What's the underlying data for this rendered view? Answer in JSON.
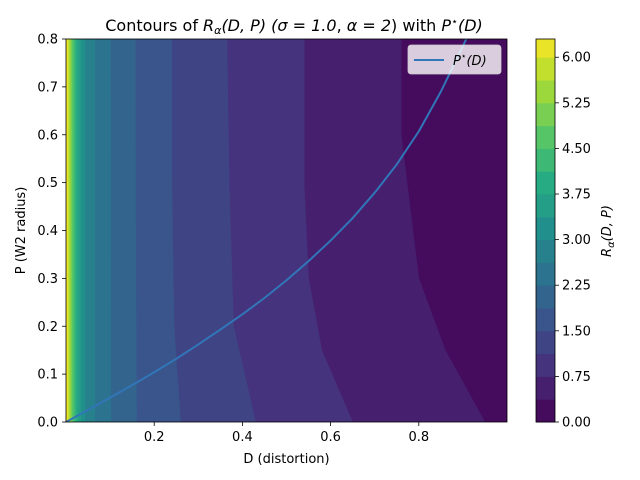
{
  "chart_data": {
    "type": "contour",
    "title": "Contours of R_α(D, P) (σ = 1.0, α = 2) with P*(D)",
    "title_parts": {
      "prefix": "Contours of ",
      "func": "R",
      "func_sub": "α",
      "args": "(D, P) (",
      "sigma": "σ = 1.0",
      "sep": ", ",
      "alpha": "α = 2",
      "suffix": ") with ",
      "pstar": "P",
      "pstar_sup": "⋆",
      "pstar_args": "(D)"
    },
    "xlabel": "D (distortion)",
    "ylabel": "P (W2 radius)",
    "xlim": [
      0.0,
      1.0
    ],
    "ylim": [
      0.0,
      0.8
    ],
    "xticks": [
      0.2,
      0.4,
      0.6,
      0.8
    ],
    "xtick_labels": [
      "0.2",
      "0.4",
      "0.6",
      "0.8"
    ],
    "yticks": [
      0.0,
      0.1,
      0.2,
      0.3,
      0.4,
      0.5,
      0.6,
      0.7,
      0.8
    ],
    "ytick_labels": [
      "0.0",
      "0.1",
      "0.2",
      "0.3",
      "0.4",
      "0.5",
      "0.6",
      "0.7",
      "0.8"
    ],
    "colorbar": {
      "label": "R_α(D, P)",
      "label_main": "R",
      "label_sub": "α",
      "label_args": "(D, P)",
      "levels": [
        0.0,
        0.375,
        0.75,
        1.125,
        1.5,
        1.875,
        2.25,
        2.625,
        3.0,
        3.375,
        3.75,
        4.125,
        4.5,
        4.875,
        5.25,
        5.625,
        6.0,
        6.375
      ],
      "ticks": [
        0.0,
        0.75,
        1.5,
        2.25,
        3.0,
        3.75,
        4.5,
        5.25,
        6.0
      ],
      "tick_labels": [
        "0.00",
        "0.75",
        "1.50",
        "2.25",
        "3.00",
        "3.75",
        "4.50",
        "5.25",
        "6.00"
      ],
      "colormap": "viridis",
      "range": [
        0.0,
        6.3
      ]
    },
    "contour_bands": [
      {
        "level_low": 0.0,
        "level_high": 0.375,
        "boundary": [
          [
            0.95,
            0.0
          ],
          [
            0.86,
            0.15
          ],
          [
            0.8,
            0.3
          ],
          [
            0.78,
            0.45
          ],
          [
            0.76,
            0.6
          ],
          [
            0.76,
            0.8
          ]
        ]
      },
      {
        "level_low": 0.375,
        "level_high": 0.75,
        "boundary": [
          [
            0.65,
            0.0
          ],
          [
            0.58,
            0.15
          ],
          [
            0.55,
            0.3
          ],
          [
            0.54,
            0.5
          ],
          [
            0.54,
            0.8
          ]
        ]
      },
      {
        "level_low": 0.75,
        "level_high": 1.125,
        "boundary": [
          [
            0.43,
            0.0
          ],
          [
            0.38,
            0.2
          ],
          [
            0.37,
            0.5
          ],
          [
            0.365,
            0.8
          ]
        ]
      },
      {
        "level_low": 1.125,
        "level_high": 1.5,
        "boundary": [
          [
            0.26,
            0.0
          ],
          [
            0.245,
            0.2
          ],
          [
            0.24,
            0.5
          ],
          [
            0.24,
            0.8
          ]
        ]
      },
      {
        "level_low": 1.5,
        "level_high": 1.875,
        "boundary": [
          [
            0.16,
            0.0
          ],
          [
            0.158,
            0.4
          ],
          [
            0.157,
            0.8
          ]
        ]
      },
      {
        "level_low": 1.875,
        "level_high": 2.25,
        "boundary": [
          [
            0.102,
            0.0
          ],
          [
            0.101,
            0.8
          ]
        ]
      },
      {
        "level_low": 2.25,
        "level_high": 2.625,
        "boundary": [
          [
            0.065,
            0.0
          ],
          [
            0.065,
            0.8
          ]
        ]
      },
      {
        "level_low": 2.625,
        "level_high": 3.0,
        "boundary": [
          [
            0.043,
            0.0
          ],
          [
            0.043,
            0.8
          ]
        ]
      },
      {
        "level_low": 3.0,
        "level_high": 3.375,
        "boundary": [
          [
            0.033,
            0.0
          ],
          [
            0.033,
            0.8
          ]
        ]
      },
      {
        "level_low": 3.375,
        "level_high": 3.75,
        "boundary": [
          [
            0.026,
            0.0
          ],
          [
            0.026,
            0.8
          ]
        ]
      },
      {
        "level_low": 3.75,
        "level_high": 4.125,
        "boundary": [
          [
            0.021,
            0.0
          ],
          [
            0.021,
            0.8
          ]
        ]
      },
      {
        "level_low": 4.125,
        "level_high": 4.5,
        "boundary": [
          [
            0.017,
            0.0
          ],
          [
            0.017,
            0.8
          ]
        ]
      },
      {
        "level_low": 4.5,
        "level_high": 4.875,
        "boundary": [
          [
            0.013,
            0.0
          ],
          [
            0.013,
            0.8
          ]
        ]
      },
      {
        "level_low": 4.875,
        "level_high": 5.25,
        "boundary": [
          [
            0.01,
            0.0
          ],
          [
            0.01,
            0.8
          ]
        ]
      },
      {
        "level_low": 5.25,
        "level_high": 5.625,
        "boundary": [
          [
            0.007,
            0.0
          ],
          [
            0.007,
            0.8
          ]
        ]
      },
      {
        "level_low": 5.625,
        "level_high": 6.0,
        "boundary": [
          [
            0.004,
            0.0
          ],
          [
            0.004,
            0.8
          ]
        ]
      },
      {
        "level_low": 6.0,
        "level_high": 6.375,
        "boundary": [
          [
            0.001,
            0.0
          ],
          [
            0.001,
            0.8
          ]
        ]
      }
    ],
    "series": [
      {
        "name": "P*(D)",
        "legend_label": {
          "main": "P",
          "sup": "⋆",
          "args": "(D)"
        },
        "color": "#3176b8",
        "x": [
          0.0,
          0.05,
          0.1,
          0.15,
          0.2,
          0.25,
          0.3,
          0.35,
          0.4,
          0.45,
          0.5,
          0.55,
          0.6,
          0.65,
          0.7,
          0.75,
          0.8,
          0.85,
          0.9,
          0.93,
          0.95,
          0.97
        ],
        "y": [
          0.0,
          0.025,
          0.051,
          0.077,
          0.104,
          0.132,
          0.162,
          0.193,
          0.225,
          0.259,
          0.296,
          0.336,
          0.379,
          0.426,
          0.479,
          0.538,
          0.607,
          0.69,
          0.785,
          0.845,
          0.9,
          0.96
        ]
      }
    ],
    "legend_position": "upper right",
    "grid": false
  }
}
